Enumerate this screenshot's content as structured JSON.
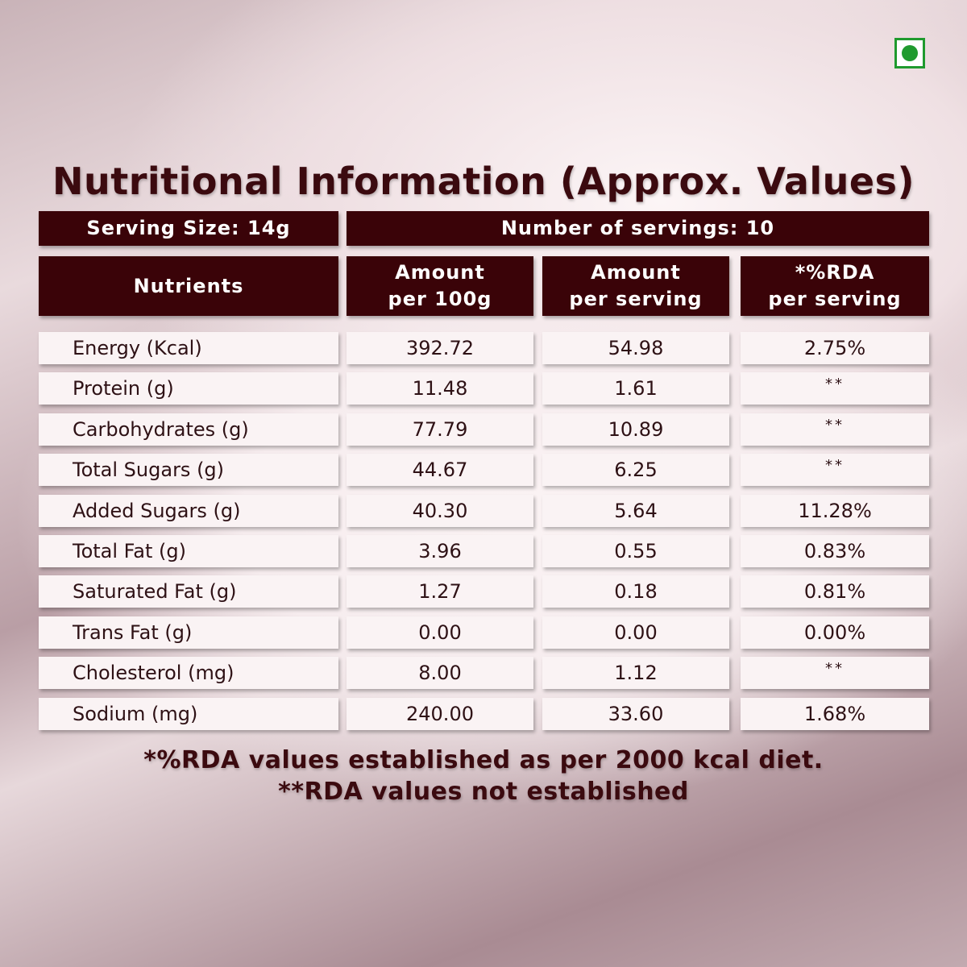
{
  "title": "Nutritional Information (Approx. Values)",
  "serving_size": "Serving Size: 14g",
  "number_of_servings": "Number of servings: 10",
  "headers": {
    "nutrients": "Nutrients",
    "per_100g_line1": "Amount",
    "per_100g_line2": "per 100g",
    "per_serving_line1": "Amount",
    "per_serving_line2": "per serving",
    "rda_line1": "*%RDA",
    "rda_line2": "per serving"
  },
  "rows": [
    {
      "nutrient": "Energy (Kcal)",
      "per100g": "392.72",
      "perServing": "54.98",
      "rda": "2.75%"
    },
    {
      "nutrient": "Protein (g)",
      "per100g": "11.48",
      "perServing": "1.61",
      "rda": "**"
    },
    {
      "nutrient": "Carbohydrates (g)",
      "per100g": "77.79",
      "perServing": "10.89",
      "rda": "**"
    },
    {
      "nutrient": "Total Sugars (g)",
      "per100g": "44.67",
      "perServing": "6.25",
      "rda": "**"
    },
    {
      "nutrient": "Added Sugars (g)",
      "per100g": "40.30",
      "perServing": "5.64",
      "rda": "11.28%"
    },
    {
      "nutrient": "Total Fat (g)",
      "per100g": "3.96",
      "perServing": "0.55",
      "rda": "0.83%"
    },
    {
      "nutrient": "Saturated Fat (g)",
      "per100g": "1.27",
      "perServing": "0.18",
      "rda": "0.81%"
    },
    {
      "nutrient": "Trans Fat (g)",
      "per100g": "0.00",
      "perServing": "0.00",
      "rda": "0.00%"
    },
    {
      "nutrient": "Cholesterol (mg)",
      "per100g": "8.00",
      "perServing": "1.12",
      "rda": "**"
    },
    {
      "nutrient": "Sodium (mg)",
      "per100g": "240.00",
      "perServing": "33.60",
      "rda": "1.68%"
    }
  ],
  "footnotes": [
    "*%RDA values established as per 2000 kcal diet.",
    "**RDA values not established"
  ],
  "colors": {
    "header_background": "#3a0308",
    "title_text": "#3b0a0f",
    "veg_mark": "#1f9a2e"
  },
  "icons": {
    "veg_mark": "veg-mark-icon"
  }
}
